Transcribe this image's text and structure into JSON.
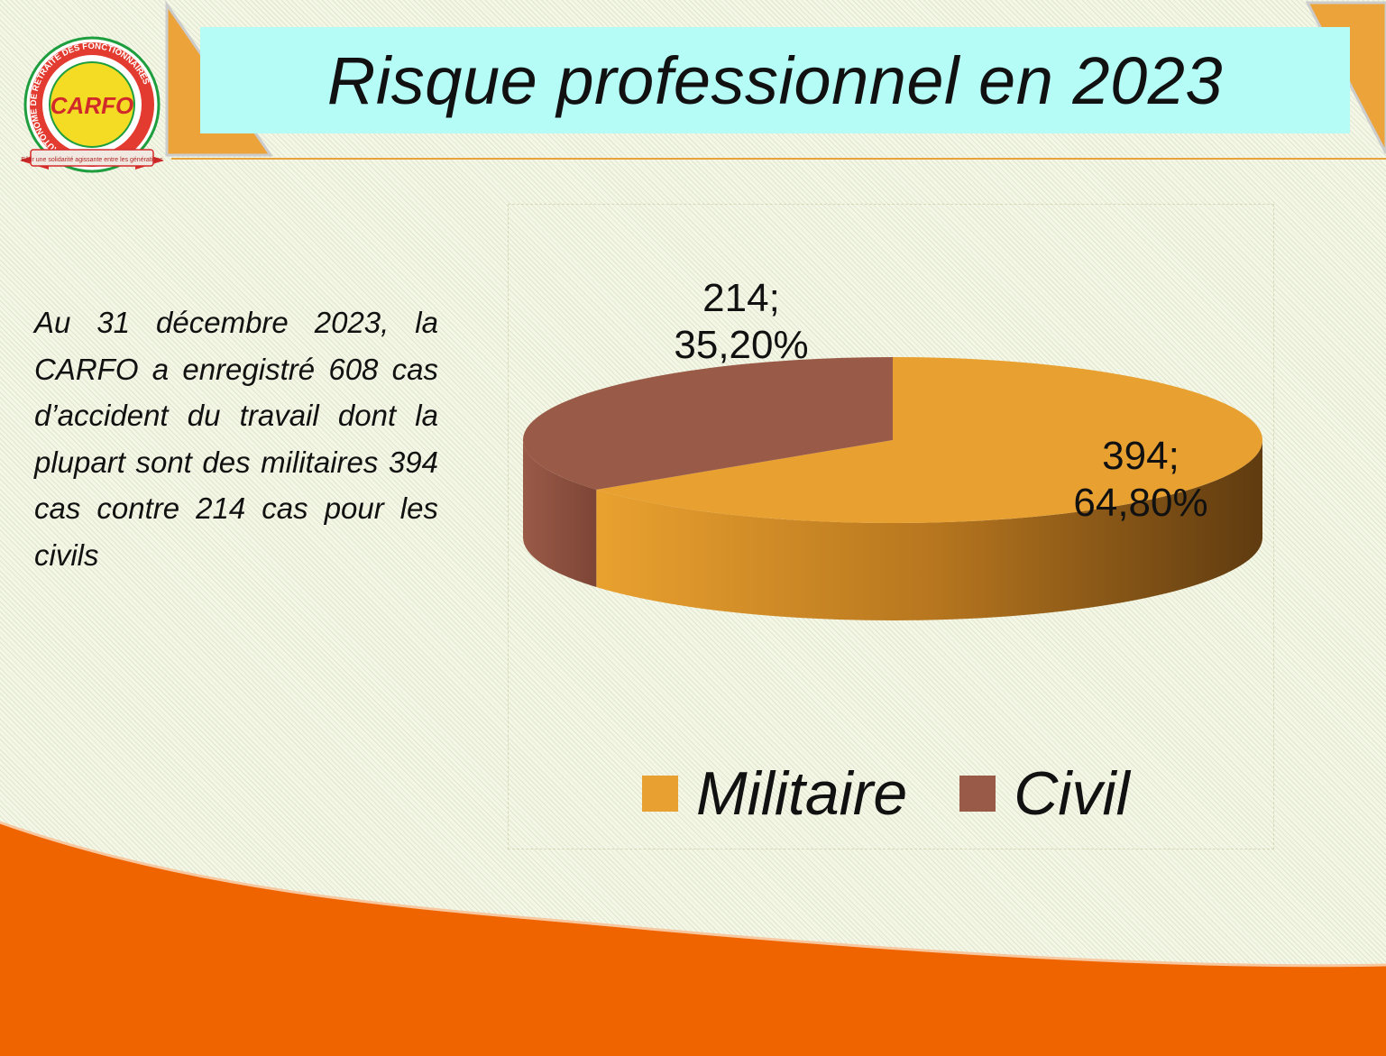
{
  "slide": {
    "title": "Risque professionnel en 2023",
    "body_text": "Au 31 décembre 2023, la CARFO a enregistré 608 cas d’accident du travail dont la plupart sont des militaires 394 cas contre 214 cas pour les civils"
  },
  "logo": {
    "initials": "CARFO",
    "ring_text": "CAISSE AUTONOME DE RETRAITE DES FONCTIONNAIRES",
    "motto": "Bâtir une solidarité agissante entre les générations"
  },
  "colors": {
    "title_band": "#b5fbf6",
    "accent_orange": "#e8a33a",
    "footer_orange": "#f06400",
    "militaire": "#e8a031",
    "civil": "#9a5a48"
  },
  "chart_data": {
    "type": "pie",
    "style": "3d",
    "categories": [
      "Militaire",
      "Civil"
    ],
    "values": [
      394,
      214
    ],
    "percent_labels": [
      "64,80%",
      "35,20%"
    ],
    "value_labels": [
      "394;",
      "214;"
    ],
    "colors": [
      "#e8a031",
      "#9a5a48"
    ],
    "legend": {
      "position": "bottom",
      "entries": [
        "Militaire",
        "Civil"
      ]
    }
  }
}
